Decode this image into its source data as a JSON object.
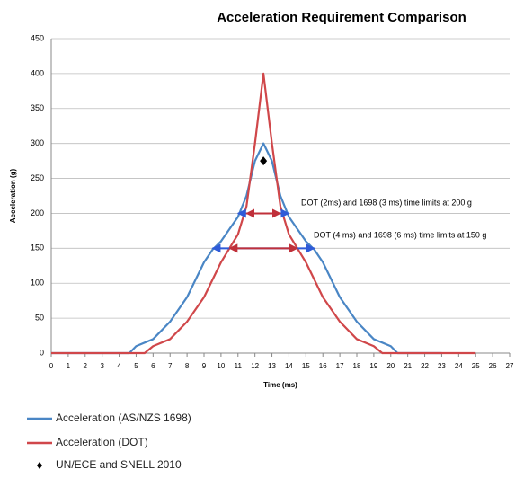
{
  "chart_data": {
    "type": "line",
    "title": "Acceleration Requirement Comparison",
    "xlabel": "Time (ms)",
    "ylabel": "Acceleration (g)",
    "xlim": [
      0,
      27
    ],
    "xticks": [
      0,
      1,
      2,
      3,
      4,
      5,
      6,
      7,
      8,
      9,
      10,
      11,
      12,
      13,
      14,
      15,
      16,
      17,
      18,
      19,
      20,
      21,
      22,
      23,
      24,
      25,
      26,
      27
    ],
    "ylim": [
      0,
      450
    ],
    "yticks": [
      0,
      50,
      100,
      150,
      200,
      250,
      300,
      350,
      400,
      450
    ],
    "grid": true,
    "series": [
      {
        "name": "Acceleration (AS/NZS 1698)",
        "color": "#4a86c5",
        "kind": "line",
        "x": [
          0,
          4.6,
          5,
          6,
          7,
          8,
          9,
          9.5,
          10,
          11,
          11.5,
          12,
          12.5,
          13,
          13.5,
          14,
          15,
          15.5,
          16,
          17,
          18,
          19,
          20,
          20.4,
          23
        ],
        "values": [
          0,
          0,
          10,
          20,
          45,
          80,
          130,
          148,
          160,
          195,
          225,
          275,
          300,
          275,
          225,
          195,
          160,
          148,
          130,
          80,
          45,
          20,
          10,
          0,
          0
        ]
      },
      {
        "name": "Acceleration (DOT)",
        "color": "#d0474a",
        "kind": "line",
        "x": [
          0,
          5.5,
          6,
          7,
          8,
          9,
          10,
          11,
          11.5,
          12,
          12.5,
          13,
          13.5,
          14,
          15,
          16,
          17,
          18,
          19,
          19.5,
          25
        ],
        "values": [
          0,
          0,
          10,
          20,
          45,
          80,
          130,
          170,
          210,
          300,
          400,
          300,
          210,
          170,
          130,
          80,
          45,
          20,
          10,
          0,
          0
        ]
      },
      {
        "name": "UN/ECE and SNELL 2010",
        "color": "#000000",
        "kind": "marker",
        "x": [
          12.5
        ],
        "values": [
          275
        ]
      }
    ],
    "ranges": [
      {
        "y": 200,
        "x": [
          11,
          14
        ],
        "color": "#2f5bd8"
      },
      {
        "y": 150,
        "x": [
          9.5,
          15.5
        ],
        "color": "#2f5bd8"
      },
      {
        "y": 200,
        "x": [
          11.5,
          13.5
        ],
        "color": "#c0303a"
      },
      {
        "y": 150,
        "x": [
          10.5,
          14.5
        ],
        "color": "#c0303a"
      }
    ],
    "annotations": [
      "DOT (2ms)  and 1698 (3 ms) time limits at 200 g",
      "DOT (4 ms)  and 1698 (6 ms) time limits at 150 g"
    ]
  }
}
